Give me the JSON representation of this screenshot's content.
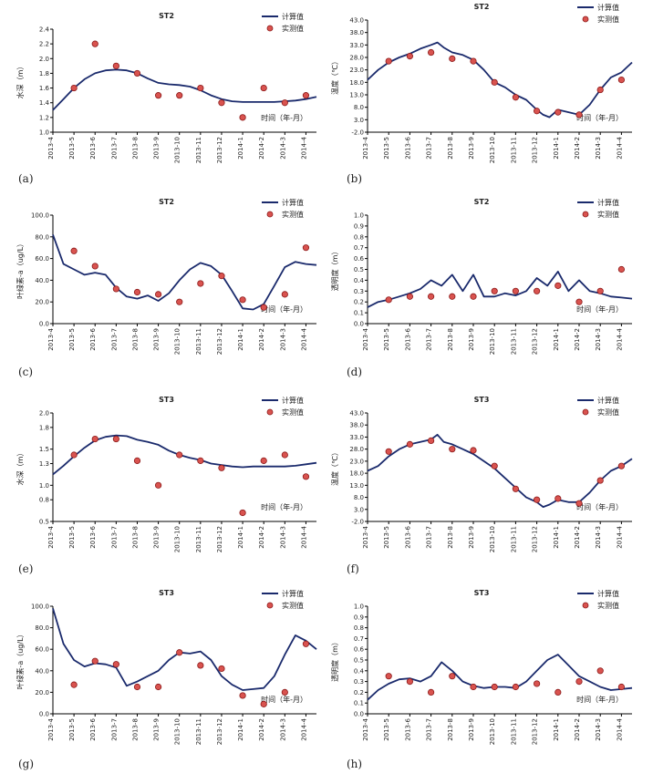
{
  "colors": {
    "calc_line": "#1a2a6c",
    "obs_fill": "#d9534f",
    "obs_stroke": "#8b1a1a",
    "axis": "#000000"
  },
  "legend": {
    "calc_label": "计算值",
    "obs_label": "实测值"
  },
  "months": [
    "2013-4",
    "2013-5",
    "2013-6",
    "2013-7",
    "2013-8",
    "2013-9",
    "2013-10",
    "2013-11",
    "2013-12",
    "2014-1",
    "2014-2",
    "2014-3",
    "2014-4"
  ],
  "chart_data": [
    {
      "panel": "(a)",
      "type": "line",
      "title": "ST2",
      "ylabel": "水深（m）",
      "xlabel": "时间（年-月）",
      "ylim": [
        1.0,
        2.4
      ],
      "yticks": [
        "1.0",
        "1.2",
        "1.4",
        "1.6",
        "1.8",
        "2.0",
        "2.2",
        "2.4"
      ],
      "series": [
        {
          "name": "计算值",
          "kind": "line",
          "x": [
            0,
            0.5,
            1,
            1.5,
            2,
            2.5,
            3,
            3.5,
            4,
            4.5,
            5,
            5.5,
            6,
            6.5,
            7,
            7.5,
            8,
            8.5,
            9,
            9.5,
            10,
            10.5,
            11,
            11.5,
            12,
            12.5
          ],
          "values": [
            1.3,
            1.45,
            1.6,
            1.72,
            1.8,
            1.84,
            1.85,
            1.84,
            1.8,
            1.73,
            1.67,
            1.65,
            1.64,
            1.62,
            1.57,
            1.5,
            1.45,
            1.42,
            1.41,
            1.41,
            1.41,
            1.41,
            1.42,
            1.43,
            1.45,
            1.48
          ]
        },
        {
          "name": "实测值",
          "kind": "scatter",
          "x": [
            1,
            2,
            3,
            4,
            5,
            6,
            7,
            8,
            9,
            10,
            11,
            12
          ],
          "values": [
            1.6,
            2.2,
            1.9,
            1.8,
            1.5,
            1.5,
            1.6,
            1.4,
            1.2,
            1.6,
            1.4,
            1.5
          ]
        }
      ]
    },
    {
      "panel": "(b)",
      "type": "line",
      "title": "ST2",
      "ylabel": "温度（℃）",
      "xlabel": "时间（年-月）",
      "ylim": [
        -2.0,
        43.0
      ],
      "yticks": [
        "-2.0",
        "3.0",
        "8.0",
        "13.0",
        "18.0",
        "23.0",
        "28.0",
        "33.0",
        "38.0",
        "43.0"
      ],
      "series": [
        {
          "name": "计算值",
          "kind": "line",
          "x": [
            0,
            0.5,
            1,
            1.5,
            2,
            2.5,
            3,
            3.3,
            3.6,
            4,
            4.5,
            5,
            5.5,
            6,
            6.5,
            7,
            7.5,
            8,
            8.3,
            8.6,
            9,
            9.5,
            10,
            10.5,
            11,
            11.5,
            12,
            12.5
          ],
          "values": [
            19.0,
            23.0,
            26.0,
            28.0,
            29.5,
            31.5,
            33.0,
            34.0,
            32.0,
            30.0,
            29.0,
            27.0,
            23.0,
            18.0,
            16.0,
            13.0,
            11.0,
            7.0,
            5.0,
            4.0,
            7.0,
            6.0,
            5.0,
            9.0,
            15.0,
            20.0,
            22.0,
            26.0
          ]
        },
        {
          "name": "实测值",
          "kind": "scatter",
          "x": [
            1,
            2,
            3,
            4,
            5,
            6,
            7,
            8,
            9,
            10,
            11,
            12
          ],
          "values": [
            26.5,
            28.5,
            30.0,
            27.5,
            26.5,
            18.0,
            12.0,
            6.5,
            6.0,
            5.0,
            15.0,
            19.0
          ]
        }
      ]
    },
    {
      "panel": "(c)",
      "type": "line",
      "title": "ST2",
      "ylabel": "叶绿素-a（ug/L）",
      "xlabel": "时间（年-月）",
      "ylim": [
        0.0,
        100.0
      ],
      "yticks": [
        "0.0",
        "20.0",
        "40.0",
        "60.0",
        "80.0",
        "100.0"
      ],
      "series": [
        {
          "name": "计算值",
          "kind": "line",
          "x": [
            0,
            0.5,
            1,
            1.5,
            2,
            2.5,
            3,
            3.5,
            4,
            4.5,
            5,
            5.5,
            6,
            6.5,
            7,
            7.5,
            8,
            8.5,
            9,
            9.5,
            10,
            10.5,
            11,
            11.5,
            12,
            12.5
          ],
          "values": [
            82.0,
            55.0,
            50.0,
            45.0,
            47.0,
            45.0,
            33.0,
            25.0,
            23.0,
            26.0,
            21.0,
            28.0,
            40.0,
            50.0,
            56.0,
            53.0,
            45.0,
            30.0,
            14.0,
            13.0,
            18.0,
            35.0,
            52.0,
            57.0,
            55.0,
            54.0
          ]
        },
        {
          "name": "实测值",
          "kind": "scatter",
          "x": [
            1,
            2,
            3,
            4,
            5,
            6,
            7,
            8,
            9,
            10,
            11,
            12
          ],
          "values": [
            67.0,
            53.0,
            32.0,
            29.0,
            27.0,
            20.0,
            37.0,
            44.0,
            22.0,
            15.0,
            27.0,
            70.0
          ]
        }
      ]
    },
    {
      "panel": "(d)",
      "type": "line",
      "title": "ST2",
      "ylabel": "透明度（m）",
      "xlabel": "时间（年-月）",
      "ylim": [
        0.0,
        1.0
      ],
      "yticks": [
        "0.0",
        "0.1",
        "0.2",
        "0.3",
        "0.4",
        "0.5",
        "0.6",
        "0.7",
        "0.8",
        "0.9",
        "1.0"
      ],
      "series": [
        {
          "name": "计算值",
          "kind": "line",
          "x": [
            0,
            0.5,
            1,
            1.5,
            2,
            2.5,
            3,
            3.5,
            4,
            4.5,
            5,
            5.5,
            6,
            6.5,
            7,
            7.5,
            8,
            8.5,
            9,
            9.5,
            10,
            10.5,
            11,
            11.5,
            12,
            12.5
          ],
          "values": [
            0.15,
            0.2,
            0.22,
            0.25,
            0.28,
            0.32,
            0.4,
            0.35,
            0.45,
            0.3,
            0.45,
            0.25,
            0.25,
            0.28,
            0.26,
            0.3,
            0.42,
            0.35,
            0.48,
            0.3,
            0.4,
            0.3,
            0.28,
            0.25,
            0.24,
            0.23
          ]
        },
        {
          "name": "实测值",
          "kind": "scatter",
          "x": [
            1,
            2,
            3,
            4,
            5,
            6,
            7,
            8,
            9,
            10,
            11,
            12
          ],
          "values": [
            0.22,
            0.25,
            0.25,
            0.25,
            0.25,
            0.3,
            0.3,
            0.3,
            0.35,
            0.2,
            0.3,
            0.5
          ]
        }
      ]
    },
    {
      "panel": "(e)",
      "type": "line",
      "title": "ST3",
      "ylabel": "水深（m）",
      "xlabel": "时间（年-月）",
      "ylim": [
        0.5,
        2.0
      ],
      "yticks": [
        "0.5",
        "0.8",
        "1.0",
        "1.3",
        "1.5",
        "1.8",
        "2.0"
      ],
      "series": [
        {
          "name": "计算值",
          "kind": "line",
          "x": [
            0,
            0.5,
            1,
            1.5,
            2,
            2.5,
            3,
            3.5,
            4,
            4.5,
            5,
            5.5,
            6,
            6.5,
            7,
            7.5,
            8,
            8.5,
            9,
            9.5,
            10,
            10.5,
            11,
            11.5,
            12,
            12.5
          ],
          "values": [
            1.15,
            1.27,
            1.4,
            1.52,
            1.62,
            1.67,
            1.69,
            1.68,
            1.63,
            1.6,
            1.56,
            1.48,
            1.42,
            1.38,
            1.35,
            1.3,
            1.28,
            1.26,
            1.25,
            1.26,
            1.26,
            1.26,
            1.26,
            1.27,
            1.29,
            1.31
          ]
        },
        {
          "name": "实测值",
          "kind": "scatter",
          "x": [
            1,
            2,
            3,
            4,
            5,
            6,
            7,
            8,
            9,
            10,
            11,
            12
          ],
          "values": [
            1.42,
            1.64,
            1.64,
            1.34,
            1.0,
            1.42,
            1.34,
            1.24,
            0.62,
            1.34,
            1.42,
            1.12
          ]
        }
      ]
    },
    {
      "panel": "(f)",
      "type": "line",
      "title": "ST3",
      "ylabel": "温度（℃）",
      "xlabel": "时间（年-月）",
      "ylim": [
        -2.0,
        43.0
      ],
      "yticks": [
        "-2.0",
        "3.0",
        "8.0",
        "13.0",
        "18.0",
        "23.0",
        "28.0",
        "33.0",
        "38.0",
        "43.0"
      ],
      "series": [
        {
          "name": "计算值",
          "kind": "line",
          "x": [
            0,
            0.5,
            1,
            1.5,
            2,
            2.5,
            3,
            3.3,
            3.6,
            4,
            4.5,
            5,
            5.5,
            6,
            6.5,
            7,
            7.5,
            8,
            8.3,
            8.6,
            9,
            9.5,
            10,
            10.5,
            11,
            11.5,
            12,
            12.5
          ],
          "values": [
            19.0,
            21.0,
            25.0,
            28.0,
            30.0,
            31.0,
            32.0,
            34.0,
            31.0,
            30.0,
            28.0,
            26.0,
            23.0,
            20.0,
            16.0,
            12.0,
            8.0,
            6.0,
            4.0,
            5.0,
            7.0,
            6.0,
            6.0,
            10.0,
            15.0,
            19.0,
            21.0,
            24.0
          ]
        },
        {
          "name": "实测值",
          "kind": "scatter",
          "x": [
            1,
            2,
            3,
            4,
            5,
            6,
            7,
            8,
            9,
            10,
            11,
            12
          ],
          "values": [
            27.0,
            30.0,
            31.5,
            28.0,
            27.5,
            21.0,
            11.5,
            7.0,
            7.5,
            5.5,
            15.0,
            21.0
          ]
        }
      ]
    },
    {
      "panel": "(g)",
      "type": "line",
      "title": "ST3",
      "ylabel": "叶绿素-a（ug/L）",
      "xlabel": "时间（年-月）",
      "ylim": [
        0.0,
        100.0
      ],
      "yticks": [
        "0.0",
        "20.0",
        "40.0",
        "60.0",
        "80.0",
        "100.0"
      ],
      "series": [
        {
          "name": "计算值",
          "kind": "line",
          "x": [
            0,
            0.5,
            1,
            1.5,
            2,
            2.5,
            3,
            3.5,
            4,
            4.5,
            5,
            5.5,
            6,
            6.5,
            7,
            7.5,
            8,
            8.5,
            9,
            9.5,
            10,
            10.5,
            11,
            11.5,
            12,
            12.5
          ],
          "values": [
            98.0,
            65.0,
            50.0,
            44.0,
            47.0,
            46.0,
            43.0,
            26.0,
            30.0,
            35.0,
            40.0,
            50.0,
            57.0,
            56.0,
            58.0,
            50.0,
            35.0,
            27.0,
            22.0,
            23.0,
            24.0,
            35.0,
            55.0,
            73.0,
            68.0,
            60.0
          ]
        },
        {
          "name": "实测值",
          "kind": "scatter",
          "x": [
            1,
            2,
            3,
            4,
            5,
            6,
            7,
            8,
            9,
            10,
            11,
            12
          ],
          "values": [
            27.0,
            49.0,
            46.0,
            25.0,
            25.0,
            57.0,
            45.0,
            42.0,
            17.0,
            9.0,
            20.0,
            65.0
          ]
        }
      ]
    },
    {
      "panel": "(h)",
      "type": "line",
      "title": "ST3",
      "ylabel": "透明度（m）",
      "xlabel": "时间（年-月）",
      "ylim": [
        0.0,
        1.0
      ],
      "yticks": [
        "0.0",
        "0.1",
        "0.2",
        "0.3",
        "0.4",
        "0.5",
        "0.6",
        "0.7",
        "0.8",
        "0.9",
        "1.0"
      ],
      "series": [
        {
          "name": "计算值",
          "kind": "line",
          "x": [
            0,
            0.5,
            1,
            1.5,
            2,
            2.5,
            3,
            3.5,
            4,
            4.5,
            5,
            5.5,
            6,
            6.5,
            7,
            7.5,
            8,
            8.5,
            9,
            9.5,
            10,
            10.5,
            11,
            11.5,
            12,
            12.5
          ],
          "values": [
            0.13,
            0.22,
            0.28,
            0.32,
            0.33,
            0.3,
            0.35,
            0.48,
            0.4,
            0.3,
            0.26,
            0.24,
            0.25,
            0.25,
            0.24,
            0.3,
            0.4,
            0.5,
            0.55,
            0.45,
            0.35,
            0.3,
            0.25,
            0.22,
            0.23,
            0.24
          ]
        },
        {
          "name": "实测值",
          "kind": "scatter",
          "x": [
            1,
            2,
            3,
            4,
            5,
            6,
            7,
            8,
            9,
            10,
            11,
            12
          ],
          "values": [
            0.35,
            0.3,
            0.2,
            0.35,
            0.25,
            0.25,
            0.25,
            0.28,
            0.2,
            0.3,
            0.4,
            0.25
          ]
        }
      ]
    }
  ]
}
